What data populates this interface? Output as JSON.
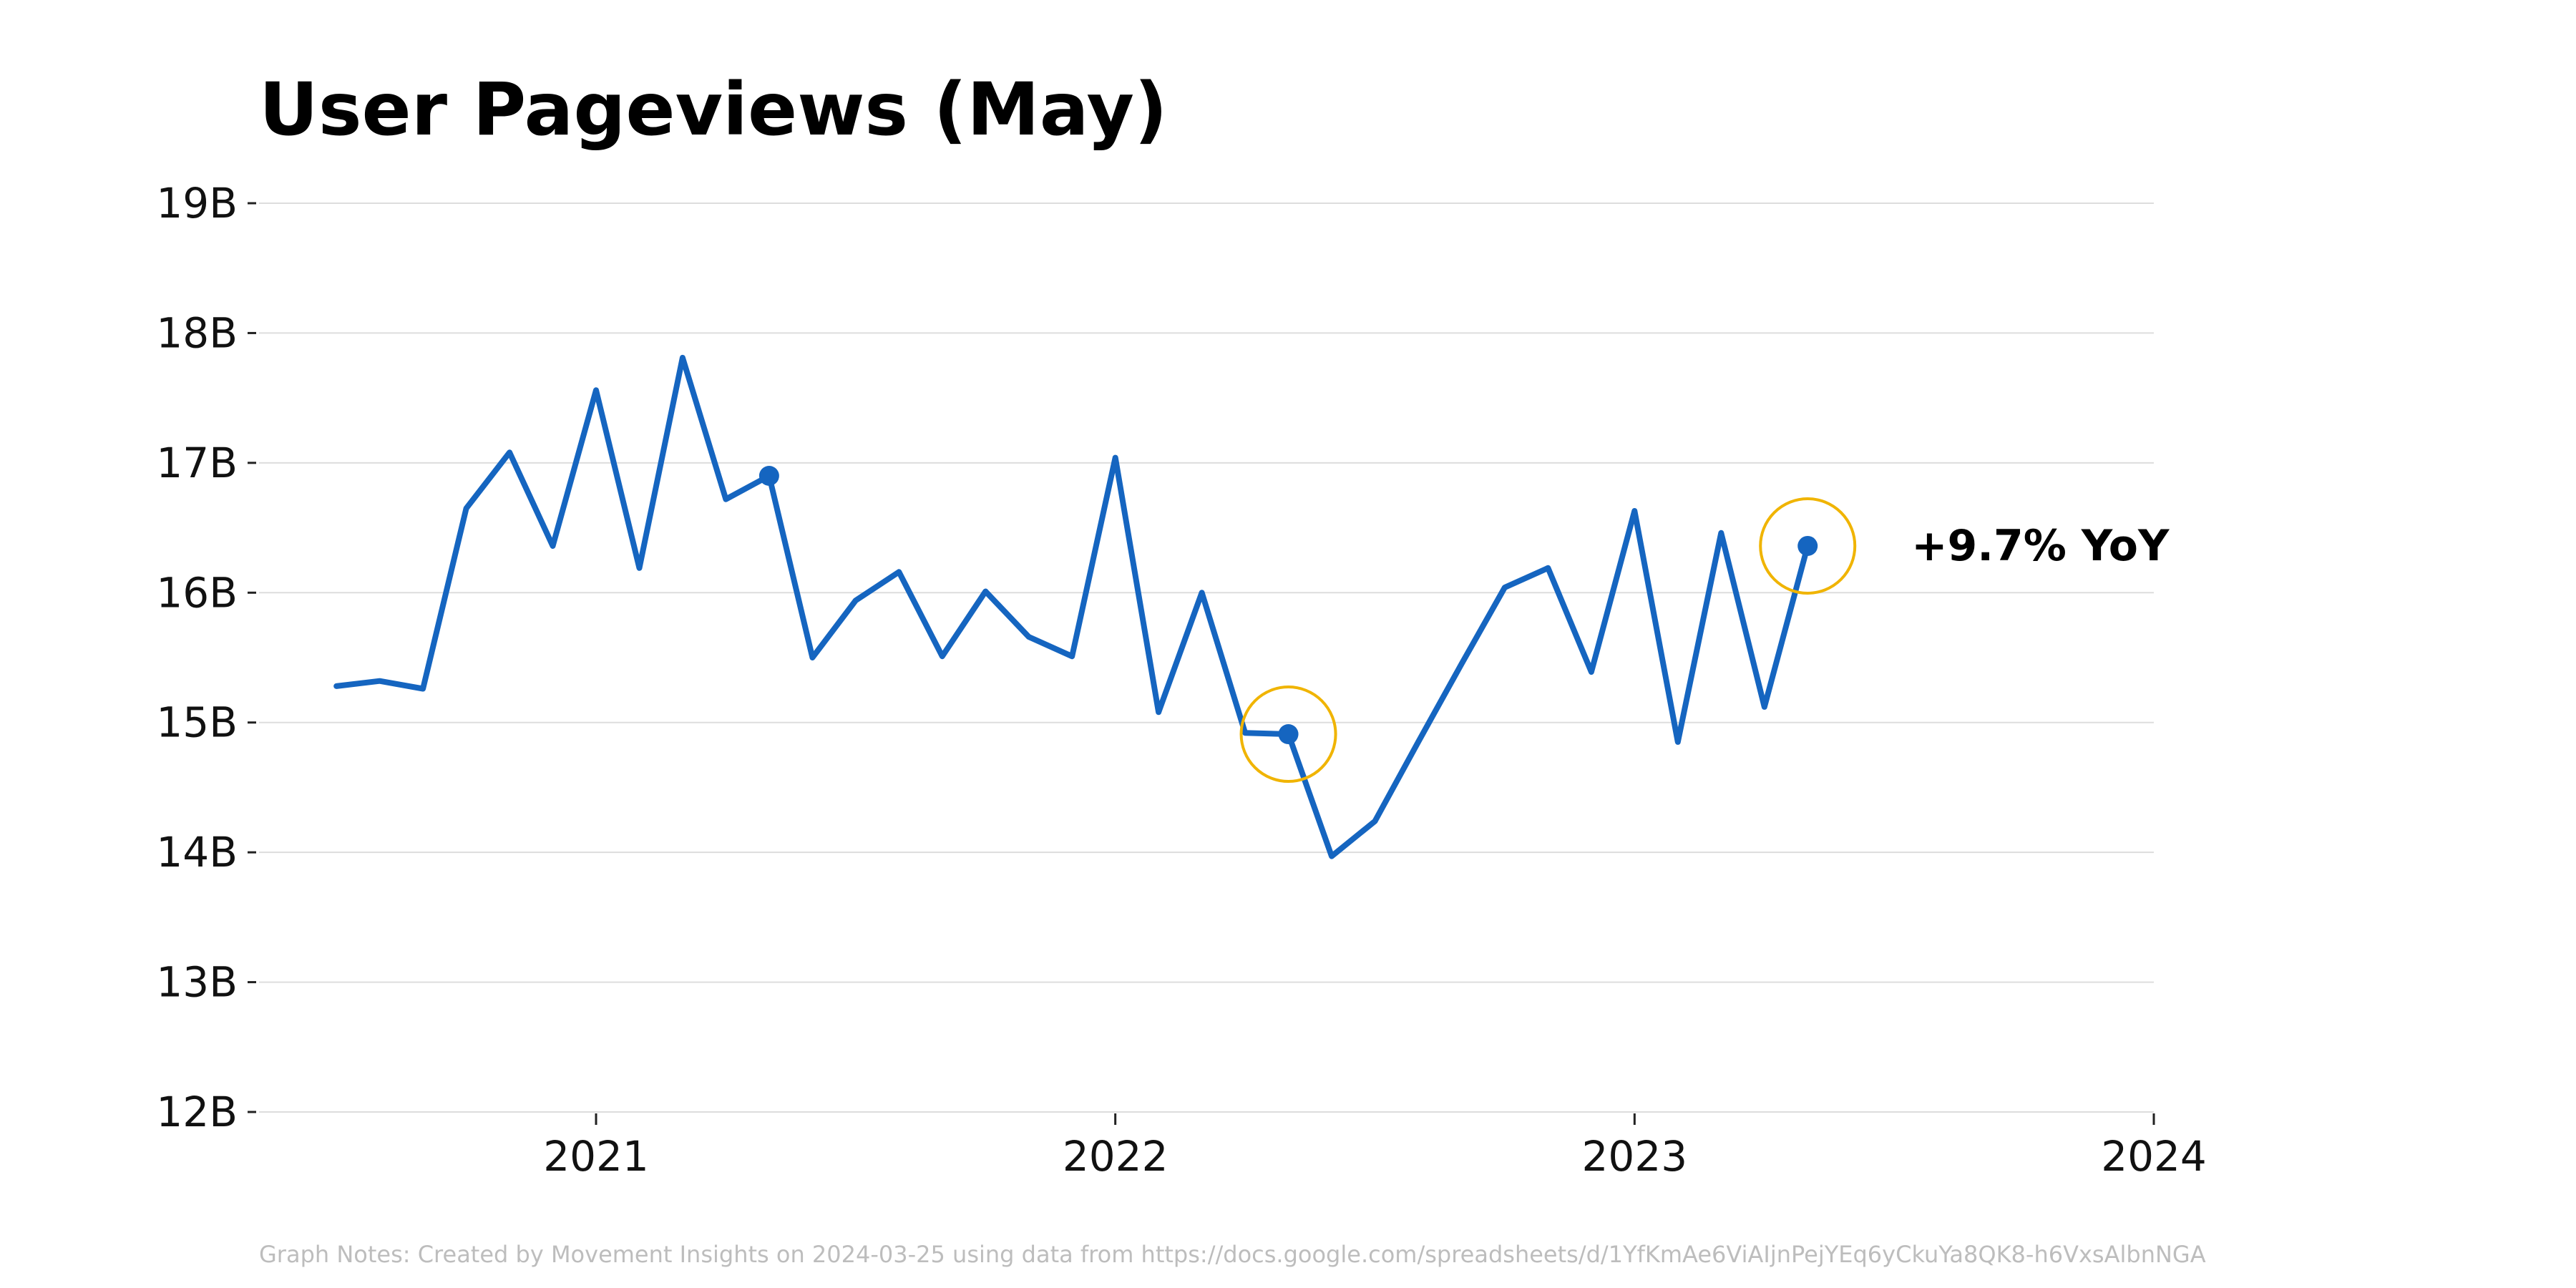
{
  "chart_data": {
    "type": "line",
    "title": "User Pageviews (May)",
    "xlabel": "",
    "ylabel": "",
    "x_ticks": [
      "2021",
      "2022",
      "2023",
      "2024"
    ],
    "y_ticks": [
      "12B",
      "13B",
      "14B",
      "15B",
      "16B",
      "17B",
      "18B",
      "19B"
    ],
    "ylim": [
      12,
      19
    ],
    "xlim": [
      "2020-07",
      "2024-01"
    ],
    "grid": "horizontal",
    "series": [
      {
        "color": "#1565c0",
        "x": [
          "2020-07",
          "2020-08",
          "2020-09",
          "2020-10",
          "2020-11",
          "2020-12",
          "2021-01",
          "2021-02",
          "2021-03",
          "2021-04",
          "2021-05",
          "2021-06",
          "2021-07",
          "2021-08",
          "2021-09",
          "2021-10",
          "2021-11",
          "2021-12",
          "2022-01",
          "2022-02",
          "2022-03",
          "2022-04",
          "2022-05",
          "2022-06",
          "2022-07",
          "2022-08",
          "2022-09",
          "2022-10",
          "2022-11",
          "2022-12",
          "2023-01",
          "2023-02",
          "2023-03",
          "2023-04",
          "2023-05"
        ],
        "values": [
          15.28,
          15.32,
          15.26,
          16.65,
          17.08,
          16.36,
          17.56,
          16.19,
          17.81,
          16.72,
          16.9,
          15.5,
          15.94,
          16.16,
          15.51,
          16.01,
          15.66,
          15.51,
          17.04,
          15.08,
          16.0,
          14.92,
          14.91,
          13.97,
          14.24,
          14.85,
          15.45,
          16.04,
          16.19,
          15.39,
          16.63,
          14.85,
          16.46,
          15.12,
          16.36
        ]
      }
    ],
    "highlighted_points": [
      {
        "x": "2021-05",
        "y": 16.9,
        "circled": false
      },
      {
        "x": "2022-05",
        "y": 14.91,
        "circled": true
      },
      {
        "x": "2023-05",
        "y": 16.36,
        "circled": true
      }
    ],
    "highlight_color": "#f0b400",
    "annotation": {
      "text": "+9.7% YoY",
      "x": "2023-05",
      "y": 16.36
    },
    "note": "Graph Notes: Created by Movement Insights  on 2024-03-25 using data from https://docs.google.com/spreadsheets/d/1YfKmAe6ViAIjnPejYEq6yCkuYa8QK8-h6VxsAlbnNGA"
  }
}
